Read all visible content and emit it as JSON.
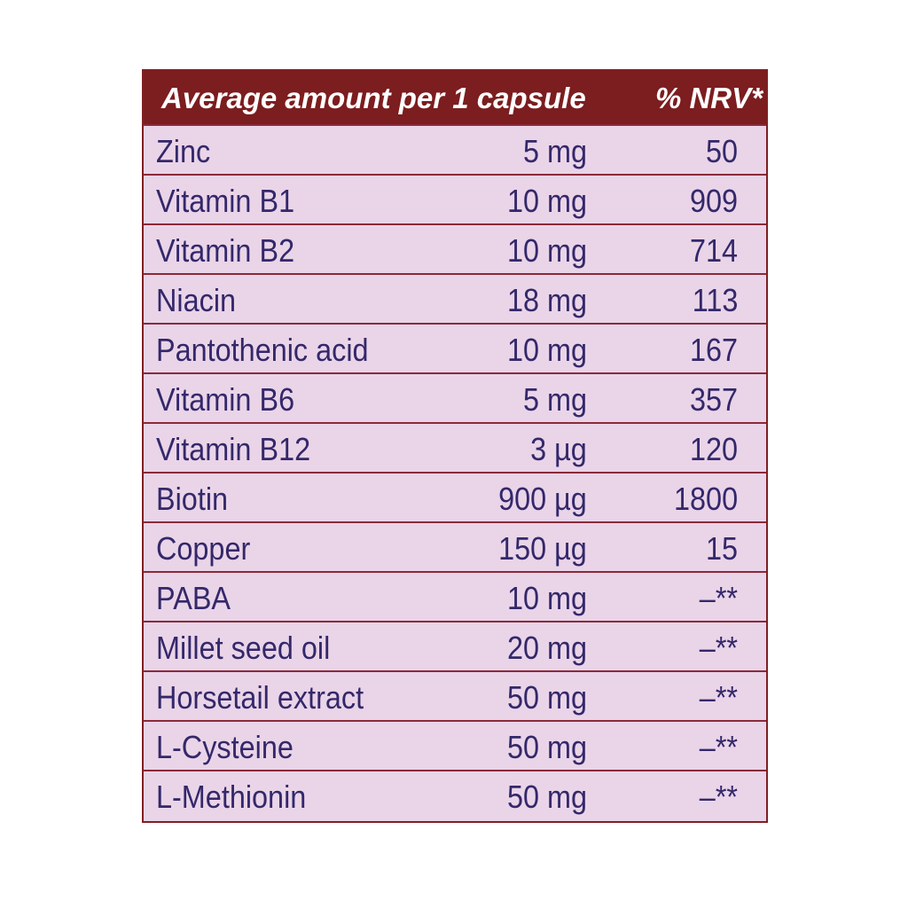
{
  "table": {
    "header": [
      "Average amount per 1 capsule",
      "% NRV*"
    ],
    "rows": [
      [
        "Zinc",
        "5 mg",
        "50"
      ],
      [
        "Vitamin B1",
        "10 mg",
        "909"
      ],
      [
        "Vitamin B2",
        "10 mg",
        "714"
      ],
      [
        "Niacin",
        "18 mg",
        "113"
      ],
      [
        "Pantothenic acid",
        "10 mg",
        "167"
      ],
      [
        "Vitamin B6",
        "5 mg",
        "357"
      ],
      [
        "Vitamin B12",
        "3 µg",
        "120"
      ],
      [
        "Biotin",
        "900 µg",
        "1800"
      ],
      [
        "Copper",
        "150 µg",
        "15"
      ],
      [
        "PABA",
        "10 mg",
        "–**"
      ],
      [
        "Millet seed oil",
        "20 mg",
        "–**"
      ],
      [
        "Horsetail extract",
        "50 mg",
        "–**"
      ],
      [
        "L-Cysteine",
        "50 mg",
        "–**"
      ],
      [
        "L-Methionin",
        "50 mg",
        "–**"
      ]
    ]
  }
}
